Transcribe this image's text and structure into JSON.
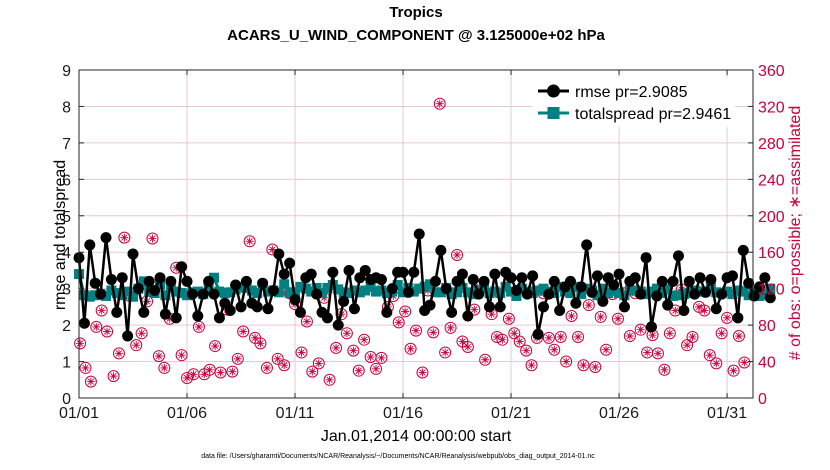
{
  "chart_data": {
    "type": "line",
    "title": "Tropics",
    "subtitle": "ACARS_U_WIND_COMPONENT @ 3.125000e+02 hPa",
    "xlabel": "Jan.01,2014 00:00:00 start",
    "ylabel": "rmse and totalspread",
    "ylabel_right": "# of obs: o=possible; ∗=assimilated",
    "footnote": "data file: /Users/gharamti/Documents/NCAR/Reanalysis/~/Documents/NCAR/Reanalysis/webpub/obs_diag_output_2014-01.nc",
    "xlim": [
      0,
      31.2
    ],
    "ylim": [
      0,
      9
    ],
    "ylim_right": [
      0,
      360
    ],
    "x_ticks": [
      0,
      5,
      10,
      15,
      20,
      25,
      30
    ],
    "x_tick_labels": [
      "01/01",
      "01/06",
      "01/11",
      "01/16",
      "01/21",
      "01/26",
      "01/31"
    ],
    "y_ticks": [
      "0",
      "1",
      "2",
      "3",
      "4",
      "5",
      "6",
      "7",
      "8",
      "9"
    ],
    "y_ticks_right": [
      "0",
      "40",
      "80",
      "120",
      "160",
      "200",
      "240",
      "280",
      "320",
      "360"
    ],
    "grid": true,
    "legend_position": "top-right",
    "colors": {
      "rmse": "#000000",
      "totalspread": "#008080",
      "obs": "#c8003c",
      "grid": "#e8c8d4"
    },
    "series": [
      {
        "name": "rmse pr=2.9085",
        "marker": "circle",
        "values": [
          3.85,
          2.05,
          4.2,
          3.15,
          2.85,
          4.4,
          3.25,
          2.35,
          3.3,
          1.7,
          3.95,
          3.0,
          2.35,
          3.2,
          2.95,
          3.3,
          2.3,
          3.2,
          2.2,
          3.6,
          3.2,
          2.85,
          2.25,
          2.85,
          3.2,
          2.85,
          2.2,
          2.6,
          2.4,
          3.1,
          2.5,
          3.2,
          2.6,
          2.5,
          3.15,
          2.45,
          2.95,
          3.95,
          3.4,
          3.7,
          2.7,
          2.35,
          3.3,
          3.4,
          2.85,
          2.35,
          2.2,
          3.45,
          2.0,
          2.65,
          3.5,
          2.45,
          3.3,
          3.5,
          3.25,
          3.3,
          3.25,
          2.35,
          3.0,
          3.45,
          3.45,
          2.9,
          3.45,
          4.5,
          2.4,
          2.55,
          3.2,
          4.05,
          3.0,
          2.35,
          3.2,
          3.4,
          2.25,
          3.25,
          2.85,
          3.2,
          2.5,
          3.4,
          2.5,
          3.45,
          3.3,
          2.95,
          3.3,
          2.85,
          3.35,
          1.75,
          2.5,
          2.85,
          3.2,
          2.4,
          3.05,
          3.2,
          2.6,
          3.05,
          4.2,
          2.9,
          3.35,
          2.65,
          3.3,
          3.1,
          3.4,
          2.5,
          3.2,
          3.3,
          2.85,
          3.85,
          1.95,
          2.8,
          3.2,
          2.55,
          3.2,
          3.9,
          2.4,
          3.2,
          2.85,
          3.3,
          2.9,
          3.25,
          2.45,
          2.85,
          3.3,
          3.35,
          2.2,
          4.05,
          3.15,
          2.8,
          3.05,
          3.3,
          2.75
        ]
      },
      {
        "name": "totalspread pr=2.9461",
        "marker": "square",
        "values": [
          3.4,
          2.82,
          2.78,
          2.82,
          2.85,
          2.8,
          2.95,
          2.88,
          2.82,
          2.92,
          2.78,
          3.0,
          3.2,
          2.92,
          2.88,
          3.12,
          2.82,
          3.02,
          2.92,
          2.88,
          2.82,
          2.9,
          2.92,
          2.85,
          3.0,
          3.3,
          2.92,
          2.88,
          2.9,
          2.98,
          3.05,
          3.02,
          2.95,
          2.88,
          3.08,
          2.92,
          2.95,
          2.9,
          3.12,
          2.88,
          2.9,
          3.05,
          3.0,
          2.92,
          3.02,
          2.88,
          3.02,
          3.1,
          2.98,
          2.9,
          2.88,
          2.95,
          2.9,
          2.95,
          3.05,
          2.92,
          2.95,
          2.88,
          2.92,
          3.1,
          2.9,
          3.02,
          2.92,
          3.0,
          3.05,
          3.12,
          2.9,
          2.9,
          3.02,
          2.85,
          2.9,
          3.02,
          2.9,
          2.85,
          2.95,
          3.0,
          2.88,
          2.92,
          2.88,
          3.05,
          2.92,
          2.8,
          3.0,
          2.92,
          2.88,
          2.95,
          3.0,
          2.92,
          2.88,
          3.05,
          2.92,
          2.88,
          3.05,
          2.85,
          3.0,
          2.95,
          2.82,
          3.0,
          2.88,
          2.95,
          2.88,
          2.82,
          2.95,
          2.95,
          2.92,
          2.85,
          2.92,
          3.0,
          2.88,
          2.98,
          2.8,
          2.82,
          2.85,
          2.88,
          2.95,
          2.92,
          2.92,
          3.05,
          2.9,
          2.88,
          2.92,
          2.85,
          2.95,
          2.92,
          2.82,
          2.92,
          2.8,
          2.85,
          3.0
        ]
      }
    ],
    "obs_counts": {
      "axis": "right",
      "marker": "asterisk-in-circle",
      "x": [
        0.05,
        0.3,
        0.55,
        0.8,
        1.05,
        1.3,
        1.6,
        1.85,
        2.1,
        2.35,
        2.65,
        2.9,
        3.15,
        3.4,
        3.7,
        3.95,
        4.2,
        4.5,
        4.75,
        5.0,
        5.3,
        5.55,
        5.8,
        6.05,
        6.3,
        6.55,
        6.85,
        7.1,
        7.35,
        7.6,
        7.9,
        8.15,
        8.4,
        8.7,
        8.95,
        9.2,
        9.5,
        9.75,
        10.0,
        10.3,
        10.55,
        10.8,
        11.1,
        11.35,
        11.6,
        11.9,
        12.15,
        12.4,
        12.7,
        12.95,
        13.2,
        13.5,
        13.75,
        14.0,
        14.3,
        14.55,
        14.8,
        15.1,
        15.35,
        15.6,
        15.9,
        16.15,
        16.4,
        16.7,
        16.95,
        17.2,
        17.5,
        17.75,
        18.0,
        18.3,
        18.55,
        18.8,
        19.1,
        19.35,
        19.6,
        19.9,
        20.15,
        20.4,
        20.7,
        20.95,
        21.2,
        21.5,
        21.75,
        22.0,
        22.3,
        22.55,
        22.8,
        23.1,
        23.35,
        23.6,
        23.9,
        24.15,
        24.4,
        24.7,
        24.95,
        25.2,
        25.5,
        25.75,
        26.0,
        26.3,
        26.55,
        26.8,
        27.1,
        27.35,
        27.6,
        27.9,
        28.15,
        28.4,
        28.7,
        28.95,
        29.2,
        29.5,
        29.75,
        30.0,
        30.3,
        30.55,
        30.8
      ],
      "values": [
        60,
        33,
        18,
        78,
        96,
        73,
        24,
        49,
        176,
        112,
        58,
        71,
        106,
        175,
        46,
        33,
        87,
        143,
        47,
        22,
        26,
        78,
        26,
        31,
        57,
        28,
        97,
        29,
        43,
        73,
        172,
        66,
        60,
        33,
        163,
        43,
        36,
        115,
        103,
        50,
        84,
        29,
        38,
        110,
        20,
        55,
        92,
        71,
        52,
        30,
        64,
        45,
        32,
        44,
        100,
        112,
        83,
        95,
        54,
        74,
        28,
        118,
        72,
        323,
        50,
        77,
        157,
        62,
        56,
        97,
        122,
        42,
        92,
        67,
        64,
        87,
        71,
        62,
        52,
        36,
        66,
        115,
        66,
        53,
        67,
        40,
        90,
        67,
        36,
        102,
        34,
        89,
        53,
        114,
        87,
        115,
        68,
        115,
        75,
        50,
        69,
        49,
        31,
        71,
        96,
        119,
        58,
        67,
        100,
        96,
        47,
        38,
        71,
        88,
        30,
        68,
        39
      ]
    }
  }
}
